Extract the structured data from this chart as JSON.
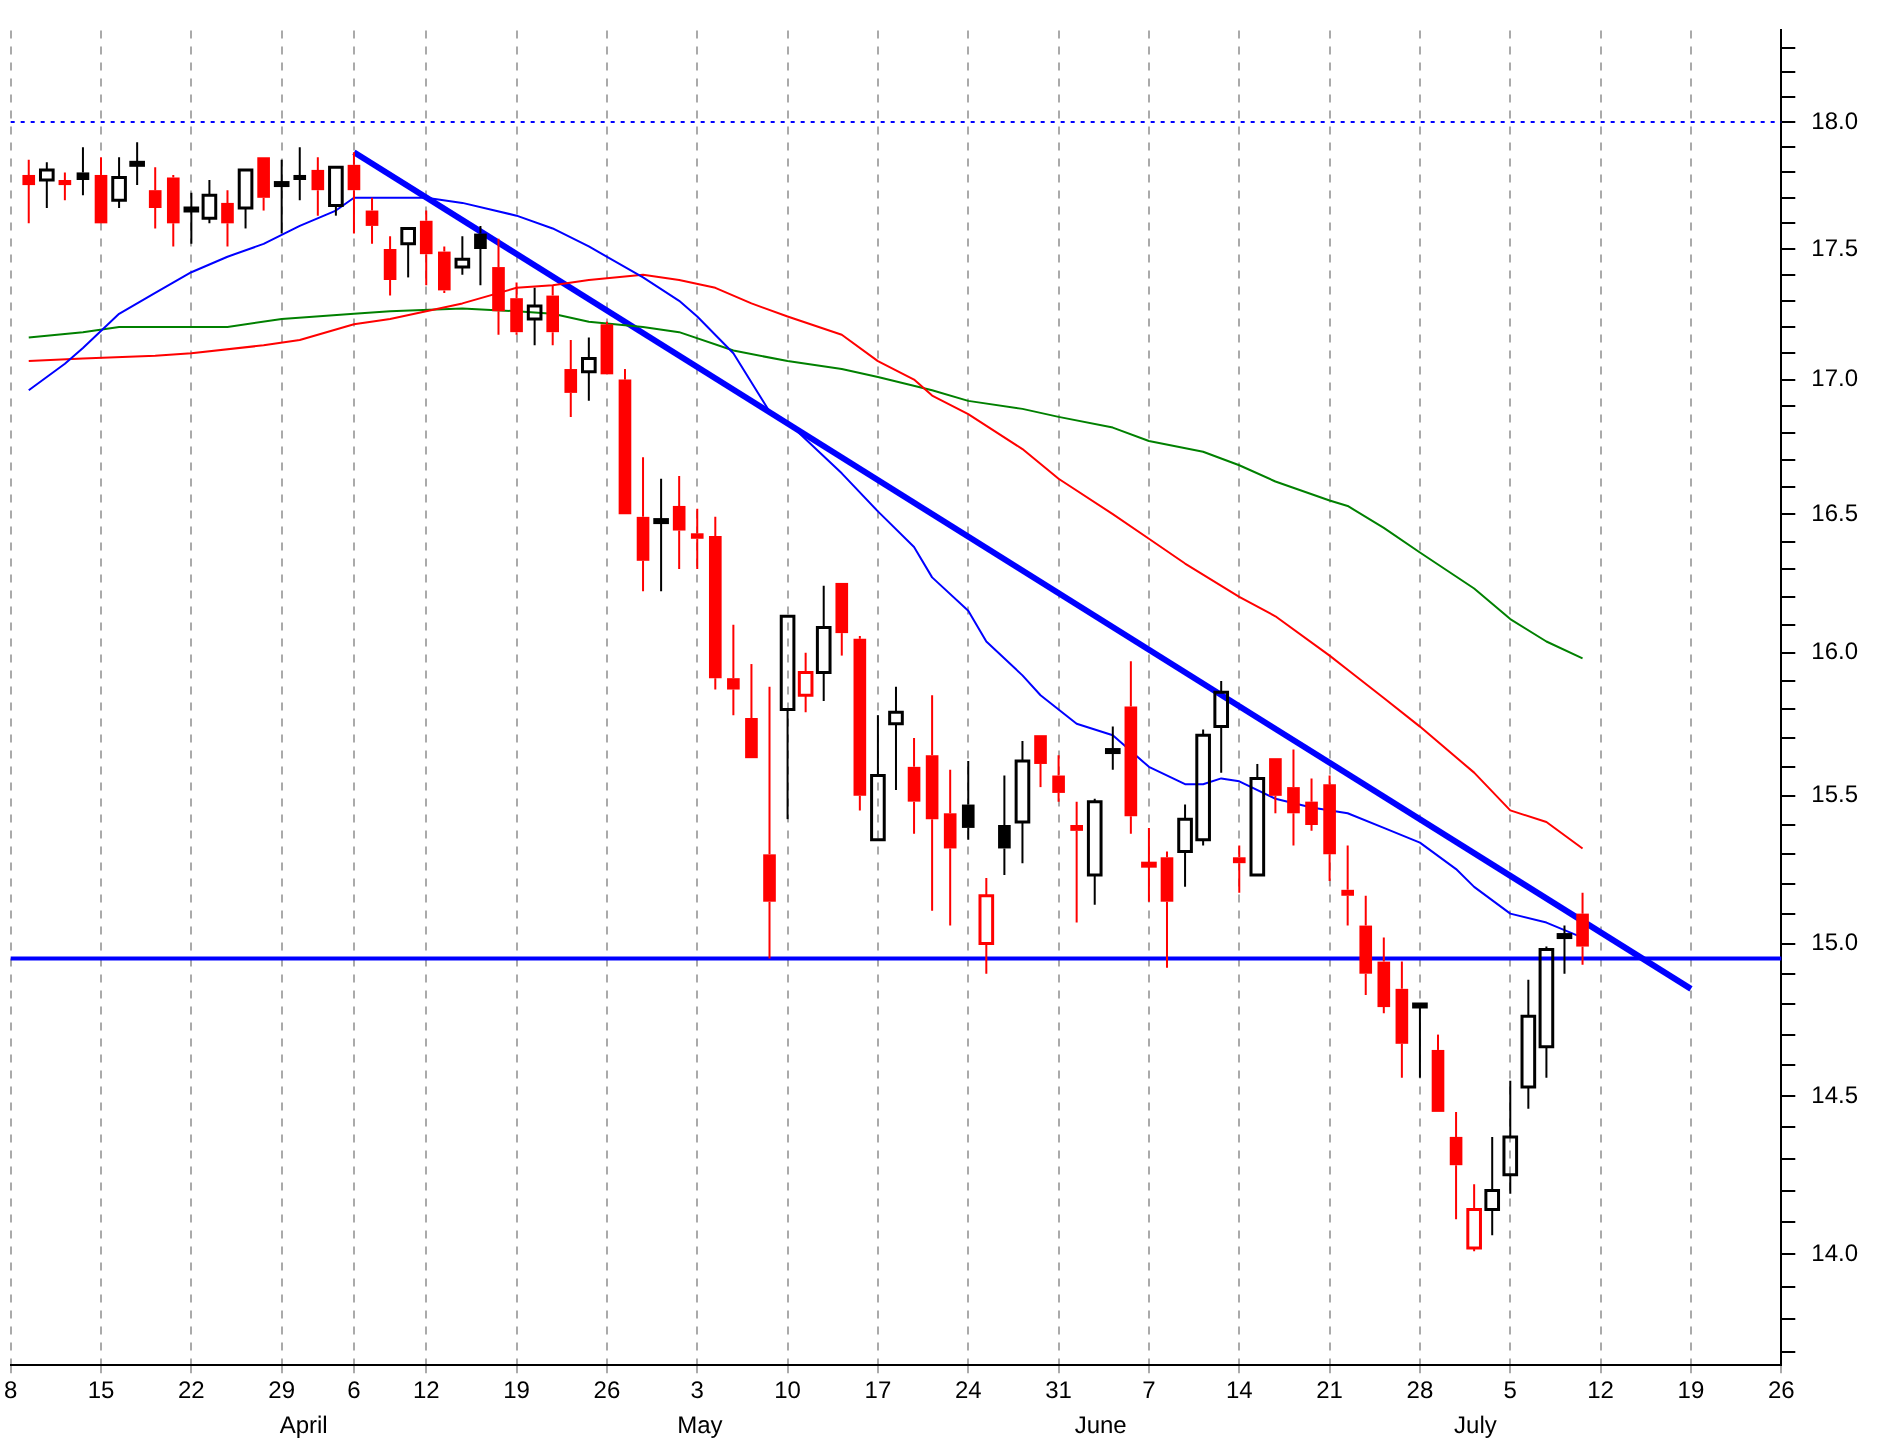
{
  "chart_data": {
    "type": "candlestick",
    "categories": [
      "8",
      null,
      null,
      null,
      null,
      "15",
      null,
      null,
      null,
      null,
      "22",
      null,
      null,
      null,
      null,
      "29",
      null,
      null,
      null,
      "6",
      null,
      null,
      null,
      "12",
      null,
      null,
      null,
      null,
      "19",
      null,
      null,
      null,
      null,
      "26",
      null,
      null,
      null,
      null,
      "3",
      null,
      null,
      null,
      null,
      "10",
      null,
      null,
      null,
      null,
      "17",
      null,
      null,
      null,
      null,
      "24",
      null,
      null,
      null,
      null,
      "31",
      null,
      null,
      null,
      null,
      "7",
      null,
      null,
      null,
      null,
      "14",
      null,
      null,
      null,
      null,
      "21",
      null,
      null,
      null,
      null,
      "28",
      null,
      null,
      null,
      null,
      "5",
      null,
      null,
      null,
      null,
      "12",
      null,
      null,
      null,
      null,
      "19",
      null,
      null,
      null,
      null,
      "26"
    ],
    "ohlc": [
      null,
      [
        17.79,
        17.85,
        17.6,
        17.75
      ],
      [
        17.77,
        17.84,
        17.66,
        17.81
      ],
      [
        17.77,
        17.8,
        17.69,
        17.75
      ],
      [
        17.8,
        17.9,
        17.71,
        17.77
      ],
      [
        17.79,
        17.86,
        17.6,
        17.6
      ],
      [
        17.69,
        17.86,
        17.66,
        17.78
      ],
      [
        17.84,
        17.92,
        17.75,
        17.84
      ],
      [
        17.73,
        17.82,
        17.58,
        17.66
      ],
      [
        17.78,
        17.79,
        17.51,
        17.6
      ],
      [
        17.66,
        17.72,
        17.52,
        17.66
      ],
      [
        17.62,
        17.77,
        17.6,
        17.71
      ],
      [
        17.68,
        17.73,
        17.51,
        17.6
      ],
      [
        17.66,
        17.81,
        17.58,
        17.81
      ],
      [
        17.86,
        17.86,
        17.65,
        17.7
      ],
      [
        17.76,
        17.85,
        17.56,
        17.76
      ],
      [
        17.79,
        17.9,
        17.69,
        17.77
      ],
      [
        17.81,
        17.86,
        17.63,
        17.73
      ],
      [
        17.67,
        17.82,
        17.63,
        17.82
      ],
      [
        17.83,
        17.88,
        17.56,
        17.73
      ],
      [
        17.65,
        17.7,
        17.52,
        17.59
      ],
      [
        17.5,
        17.55,
        17.32,
        17.38
      ],
      [
        17.52,
        17.58,
        17.39,
        17.58
      ],
      [
        17.61,
        17.65,
        17.36,
        17.48
      ],
      [
        17.49,
        17.51,
        17.33,
        17.34
      ],
      [
        17.43,
        17.55,
        17.4,
        17.46
      ],
      [
        17.56,
        17.59,
        17.36,
        17.5
      ],
      [
        17.43,
        17.54,
        17.17,
        17.26
      ],
      [
        17.31,
        17.37,
        17.17,
        17.18
      ],
      [
        17.23,
        17.35,
        17.13,
        17.28
      ],
      [
        17.32,
        17.36,
        17.13,
        17.18
      ],
      [
        17.04,
        17.15,
        16.86,
        16.95
      ],
      [
        17.03,
        17.16,
        16.92,
        17.08
      ],
      [
        17.21,
        17.22,
        17.02,
        17.02
      ],
      [
        17.0,
        17.04,
        16.5,
        16.5
      ],
      [
        16.49,
        16.71,
        16.22,
        16.33
      ],
      [
        16.48,
        16.63,
        16.22,
        16.48
      ],
      [
        16.53,
        16.64,
        16.3,
        16.44
      ],
      [
        16.43,
        16.52,
        16.3,
        16.41
      ],
      [
        16.42,
        16.49,
        15.87,
        15.91
      ],
      [
        15.91,
        16.1,
        15.78,
        15.87
      ],
      [
        15.77,
        15.96,
        15.63,
        15.63
      ],
      [
        15.3,
        15.88,
        14.95,
        15.14
      ],
      [
        15.8,
        16.13,
        15.42,
        16.13
      ],
      [
        15.85,
        16.0,
        15.79,
        15.93
      ],
      [
        15.93,
        16.24,
        15.83,
        16.09
      ],
      [
        16.25,
        16.25,
        15.99,
        16.07
      ],
      [
        16.05,
        16.06,
        15.45,
        15.5
      ],
      [
        15.35,
        15.78,
        15.35,
        15.57
      ],
      [
        15.75,
        15.88,
        15.52,
        15.79
      ],
      [
        15.6,
        15.7,
        15.37,
        15.48
      ],
      [
        15.64,
        15.85,
        15.11,
        15.42
      ],
      [
        15.44,
        15.59,
        15.06,
        15.32
      ],
      [
        15.47,
        15.62,
        15.35,
        15.39
      ],
      [
        15.0,
        15.22,
        14.9,
        15.16
      ],
      [
        15.4,
        15.57,
        15.23,
        15.32
      ],
      [
        15.41,
        15.69,
        15.27,
        15.62
      ],
      [
        15.71,
        15.71,
        15.53,
        15.61
      ],
      [
        15.57,
        15.64,
        15.48,
        15.51
      ],
      [
        15.4,
        15.48,
        15.07,
        15.38
      ],
      [
        15.23,
        15.49,
        15.13,
        15.48
      ],
      [
        15.65,
        15.74,
        15.59,
        15.66
      ],
      [
        15.81,
        15.97,
        15.37,
        15.43
      ],
      [
        15.26,
        15.39,
        15.14,
        15.27
      ],
      [
        15.29,
        15.31,
        14.92,
        15.14
      ],
      [
        15.31,
        15.47,
        15.19,
        15.42
      ],
      [
        15.35,
        15.73,
        15.33,
        15.71
      ],
      [
        15.74,
        15.9,
        15.58,
        15.86
      ],
      [
        15.29,
        15.33,
        15.17,
        15.27
      ],
      [
        15.23,
        15.61,
        15.23,
        15.56
      ],
      [
        15.63,
        15.63,
        15.44,
        15.5
      ],
      [
        15.53,
        15.66,
        15.33,
        15.44
      ],
      [
        15.48,
        15.56,
        15.38,
        15.4
      ],
      [
        15.54,
        15.57,
        15.21,
        15.3
      ],
      [
        15.18,
        15.33,
        15.06,
        15.16
      ],
      [
        15.06,
        15.16,
        14.83,
        14.9
      ],
      [
        14.94,
        15.02,
        14.77,
        14.79
      ],
      [
        14.85,
        14.94,
        14.56,
        14.67
      ],
      [
        14.79,
        14.8,
        14.56,
        14.8
      ],
      [
        14.65,
        14.7,
        14.45,
        14.45
      ],
      [
        14.37,
        14.45,
        14.11,
        14.28
      ],
      [
        14.02,
        14.22,
        14.01,
        14.14
      ],
      [
        14.14,
        14.37,
        14.06,
        14.2
      ],
      [
        14.25,
        14.55,
        14.19,
        14.37
      ],
      [
        14.53,
        14.88,
        14.46,
        14.76
      ],
      [
        14.66,
        14.99,
        14.56,
        14.98
      ],
      [
        15.02,
        15.06,
        14.9,
        15.03
      ],
      [
        15.1,
        15.17,
        14.93,
        14.99
      ],
      null,
      null,
      null,
      null,
      null,
      null,
      null,
      null,
      null,
      null,
      null
    ],
    "colors": [
      null,
      "#ff0000",
      "#000000",
      "#ff0000",
      "#000000",
      "#ff0000",
      "#000000",
      "#000000",
      "#ff0000",
      "#ff0000",
      "#000000",
      "#000000",
      "#ff0000",
      "#000000",
      "#ff0000",
      "#000000",
      "#000000",
      "#ff0000",
      "#000000",
      "#ff0000",
      "#ff0000",
      "#ff0000",
      "#000000",
      "#ff0000",
      "#ff0000",
      "#000000",
      "#000000",
      "#ff0000",
      "#ff0000",
      "#000000",
      "#ff0000",
      "#ff0000",
      "#000000",
      "#ff0000",
      "#ff0000",
      "#ff0000",
      "#000000",
      "#ff0000",
      "#ff0000",
      "#ff0000",
      "#ff0000",
      "#ff0000",
      "#ff0000",
      "#000000",
      "#ff0000",
      "#000000",
      "#ff0000",
      "#ff0000",
      "#000000",
      "#000000",
      "#ff0000",
      "#ff0000",
      "#ff0000",
      "#000000",
      "#ff0000",
      "#000000",
      "#000000",
      "#ff0000",
      "#ff0000",
      "#ff0000",
      "#000000",
      "#000000",
      "#ff0000",
      "#ff0000",
      "#ff0000",
      "#000000",
      "#000000",
      "#000000",
      "#ff0000",
      "#000000",
      "#ff0000",
      "#ff0000",
      "#ff0000",
      "#ff0000",
      "#ff0000",
      "#ff0000",
      "#ff0000",
      "#ff0000",
      "#000000",
      "#ff0000",
      "#ff0000",
      "#ff0000",
      "#000000",
      "#000000",
      "#000000",
      "#000000",
      "#000000",
      "#ff0000",
      null,
      null,
      null,
      null,
      null,
      null,
      null,
      null,
      null,
      null,
      null
    ],
    "series": [
      {
        "type": "line",
        "color": "#0000ff",
        "values": [
          null,
          16.96,
          null,
          17.06,
          17.12,
          null,
          17.25,
          null,
          17.33,
          null,
          17.41,
          null,
          17.47,
          null,
          17.52,
          null,
          17.59,
          null,
          17.65,
          17.7,
          null,
          17.7,
          null,
          17.7,
          null,
          17.68,
          null,
          null,
          17.63,
          null,
          17.58,
          null,
          17.51,
          null,
          null,
          17.39,
          null,
          17.3,
          17.24,
          null,
          17.1,
          null,
          16.88,
          16.84,
          null,
          null,
          16.65,
          null,
          16.51,
          null,
          16.38,
          16.27,
          null,
          16.15,
          16.04,
          null,
          15.92,
          15.85,
          null,
          15.75,
          null,
          15.71,
          null,
          15.6,
          null,
          15.54,
          15.54,
          15.56,
          15.55,
          null,
          15.49,
          null,
          15.46,
          null,
          15.44,
          null,
          15.39,
          null,
          15.34,
          null,
          15.25,
          15.19,
          null,
          15.1,
          null,
          15.07,
          null,
          15.02,
          null,
          null,
          null,
          null,
          null,
          null,
          null,
          null,
          null,
          null,
          null
        ]
      },
      {
        "type": "line",
        "color": "#ff0000",
        "values": [
          null,
          17.07,
          null,
          null,
          17.08,
          null,
          null,
          null,
          17.09,
          null,
          17.1,
          null,
          null,
          null,
          17.13,
          null,
          17.15,
          null,
          null,
          17.21,
          null,
          17.23,
          null,
          null,
          null,
          17.29,
          null,
          null,
          17.35,
          null,
          17.36,
          null,
          17.38,
          null,
          null,
          17.4,
          null,
          17.38,
          null,
          17.35,
          null,
          17.29,
          null,
          17.24,
          null,
          null,
          17.17,
          null,
          17.07,
          null,
          17.0,
          16.94,
          null,
          16.87,
          null,
          null,
          16.74,
          null,
          16.63,
          null,
          null,
          16.5,
          null,
          16.41,
          null,
          16.32,
          null,
          null,
          16.2,
          null,
          16.13,
          null,
          null,
          15.99,
          15.94,
          null,
          15.84,
          null,
          15.74,
          null,
          null,
          15.58,
          null,
          15.45,
          null,
          15.41,
          null,
          15.32,
          null,
          null,
          null,
          null,
          null,
          null,
          null,
          null,
          null,
          null,
          null
        ]
      },
      {
        "type": "line",
        "color": "#008000",
        "values": [
          null,
          17.16,
          null,
          null,
          17.18,
          null,
          17.2,
          null,
          null,
          null,
          17.2,
          null,
          17.2,
          null,
          null,
          17.23,
          null,
          null,
          null,
          17.25,
          null,
          17.26,
          null,
          null,
          null,
          17.27,
          null,
          null,
          17.26,
          null,
          17.25,
          null,
          17.22,
          null,
          null,
          17.2,
          null,
          17.18,
          null,
          null,
          17.11,
          null,
          null,
          17.07,
          null,
          null,
          17.04,
          null,
          17.01,
          null,
          null,
          16.96,
          null,
          16.92,
          null,
          null,
          16.89,
          null,
          16.86,
          null,
          null,
          16.82,
          null,
          16.77,
          null,
          null,
          16.73,
          null,
          16.68,
          null,
          16.62,
          null,
          null,
          16.55,
          16.53,
          null,
          16.45,
          null,
          16.36,
          null,
          null,
          16.23,
          null,
          16.12,
          null,
          16.04,
          null,
          15.98,
          null,
          null,
          null,
          null,
          null,
          null,
          null,
          null,
          null,
          null,
          null
        ]
      },
      {
        "type": "line",
        "color": "#0000ff",
        "values": [
          null,
          null,
          null,
          null,
          null,
          null,
          null,
          null,
          null,
          null,
          null,
          null,
          null,
          null,
          null,
          null,
          null,
          null,
          null,
          17.88,
          null,
          null,
          null,
          null,
          null,
          null,
          null,
          null,
          null,
          null,
          null,
          null,
          null,
          null,
          null,
          null,
          null,
          null,
          null,
          null,
          null,
          null,
          null,
          null,
          null,
          null,
          null,
          null,
          null,
          null,
          null,
          null,
          null,
          null,
          null,
          null,
          null,
          null,
          null,
          null,
          null,
          null,
          null,
          null,
          null,
          null,
          null,
          null,
          null,
          null,
          null,
          null,
          null,
          null,
          null,
          null,
          null,
          null,
          null,
          null,
          null,
          null,
          null,
          null,
          null,
          null,
          null,
          null,
          null,
          null,
          null,
          null,
          null,
          14.85,
          null,
          null,
          null,
          null,
          null
        ]
      }
    ],
    "log": "y",
    "ylim": [
      13.66,
      18.37
    ],
    "yticks": [
      {
        "value": 13.7,
        "label": null
      },
      {
        "value": 13.8,
        "label": null
      },
      {
        "value": 13.9,
        "label": null
      },
      {
        "value": 14,
        "label": "14.0"
      },
      {
        "value": 14.1,
        "label": null
      },
      {
        "value": 14.2,
        "label": null
      },
      {
        "value": 14.3,
        "label": null
      },
      {
        "value": 14.4,
        "label": null
      },
      {
        "value": 14.5,
        "label": "14.5"
      },
      {
        "value": 14.6,
        "label": null
      },
      {
        "value": 14.7,
        "label": null
      },
      {
        "value": 14.8,
        "label": null
      },
      {
        "value": 14.9,
        "label": null
      },
      {
        "value": 15,
        "label": "15.0"
      },
      {
        "value": 15.1,
        "label": null
      },
      {
        "value": 15.2,
        "label": null
      },
      {
        "value": 15.3,
        "label": null
      },
      {
        "value": 15.4,
        "label": null
      },
      {
        "value": 15.5,
        "label": "15.5"
      },
      {
        "value": 15.6,
        "label": null
      },
      {
        "value": 15.7,
        "label": null
      },
      {
        "value": 15.8,
        "label": null
      },
      {
        "value": 15.9,
        "label": null
      },
      {
        "value": 16,
        "label": "16.0"
      },
      {
        "value": 16.1,
        "label": null
      },
      {
        "value": 16.2,
        "label": null
      },
      {
        "value": 16.3,
        "label": null
      },
      {
        "value": 16.4,
        "label": null
      },
      {
        "value": 16.5,
        "label": "16.5"
      },
      {
        "value": 16.6,
        "label": null
      },
      {
        "value": 16.7,
        "label": null
      },
      {
        "value": 16.8,
        "label": null
      },
      {
        "value": 16.9,
        "label": null
      },
      {
        "value": 17,
        "label": "17.0"
      },
      {
        "value": 17.1,
        "label": null
      },
      {
        "value": 17.2,
        "label": null
      },
      {
        "value": 17.3,
        "label": null
      },
      {
        "value": 17.4,
        "label": null
      },
      {
        "value": 17.5,
        "label": "17.5"
      },
      {
        "value": 17.6,
        "label": null
      },
      {
        "value": 17.7,
        "label": null
      },
      {
        "value": 17.8,
        "label": null
      },
      {
        "value": 17.9,
        "label": null
      },
      {
        "value": 18,
        "label": "18.0"
      },
      {
        "value": 18.1,
        "label": null
      },
      {
        "value": 18.2,
        "label": null
      },
      {
        "value": 18.3,
        "label": null
      }
    ],
    "grid": "x",
    "ref_lines": [
      {
        "axis": "y",
        "value": 18,
        "color": "#0000ff",
        "line_style": "dotted"
      },
      {
        "axis": "y",
        "value": 14.95,
        "color": "#0000ff",
        "line_style": "solid"
      }
    ],
    "annotations": [
      "April",
      "May",
      "June",
      "July"
    ]
  }
}
